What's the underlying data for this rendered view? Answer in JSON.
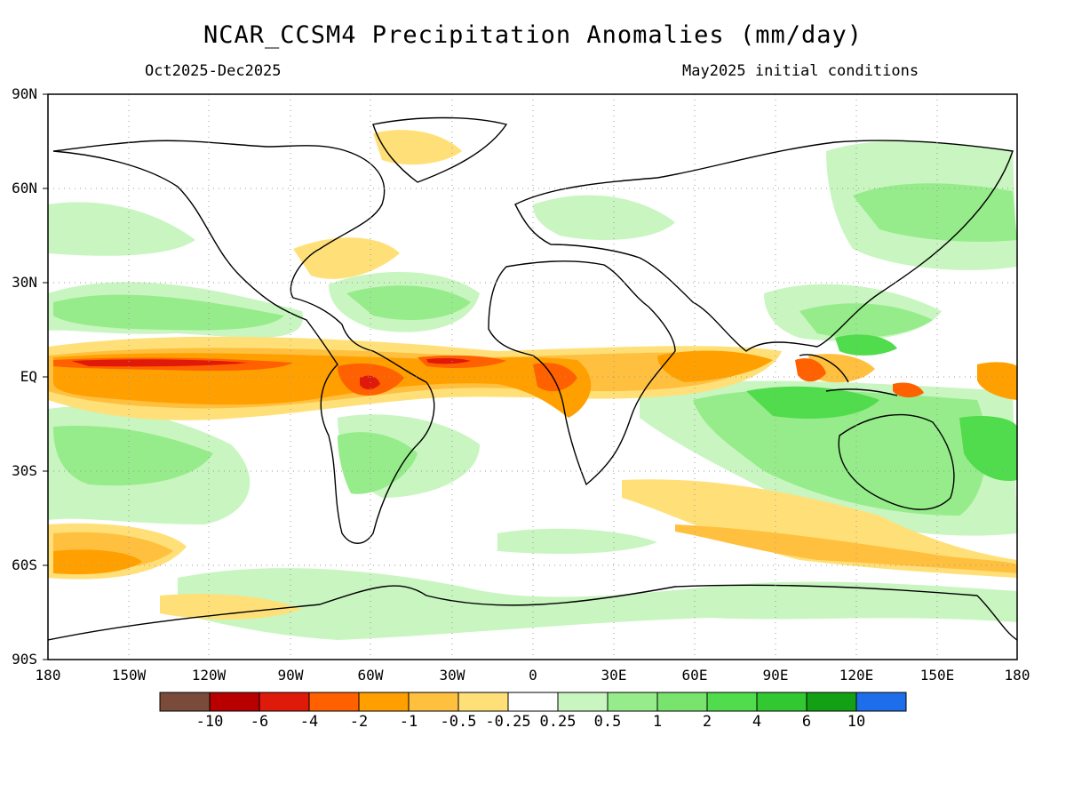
{
  "title": "NCAR_CCSM4 Precipitation Anomalies (mm/day)",
  "period": "Oct2025-Dec2025",
  "initial_conditions": "May2025 initial conditions",
  "lat_labels": [
    "90N",
    "60N",
    "30N",
    "EQ",
    "30S",
    "60S",
    "90S"
  ],
  "lon_labels": [
    "180",
    "150W",
    "120W",
    "90W",
    "60W",
    "30W",
    "0",
    "30E",
    "60E",
    "90E",
    "120E",
    "150E",
    "180"
  ],
  "colorbar": {
    "colors": [
      "#7a4b3a",
      "#b80000",
      "#e01a0a",
      "#ff6000",
      "#ffa000",
      "#ffc040",
      "#ffe078",
      "#ffffff",
      "#c8f5c0",
      "#96ec8a",
      "#78e46e",
      "#50dc4c",
      "#32c832",
      "#14a014",
      "#1e6eeb"
    ],
    "labels": [
      "-10",
      "-6",
      "-4",
      "-2",
      "-1",
      "-0.5",
      "-0.25",
      "0.25",
      "0.5",
      "1",
      "2",
      "4",
      "6",
      "10"
    ]
  }
}
